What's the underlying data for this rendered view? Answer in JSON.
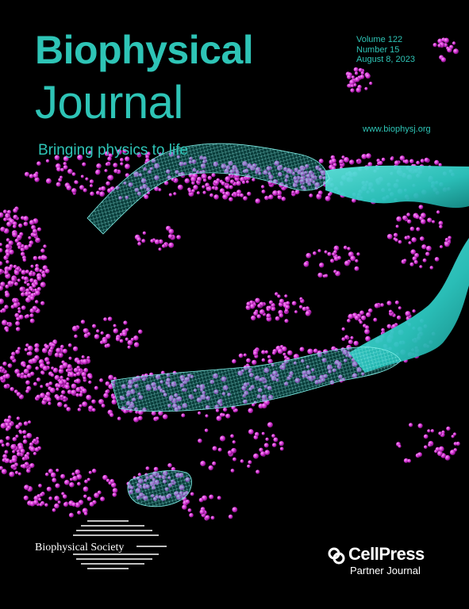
{
  "journal": {
    "title_line1": "Biophysical",
    "title_line2": "Journal",
    "tagline": "Bringing physics to life",
    "url": "www.biophysj.org"
  },
  "issue": {
    "volume": "Volume 122",
    "number": "Number 15",
    "date": "August 8, 2023"
  },
  "publisher": {
    "society": "Biophysical Society",
    "partner_name": "CellPress",
    "partner_subtitle": "Partner Journal"
  },
  "colors": {
    "accent": "#2ec4b6",
    "particles": "#d633d6",
    "background": "#000000",
    "logo_text": "#ffffff"
  },
  "icons": {
    "society_logo": "stacked-lines-logo-icon",
    "partner_logo": "cellpress-logo-icon"
  }
}
